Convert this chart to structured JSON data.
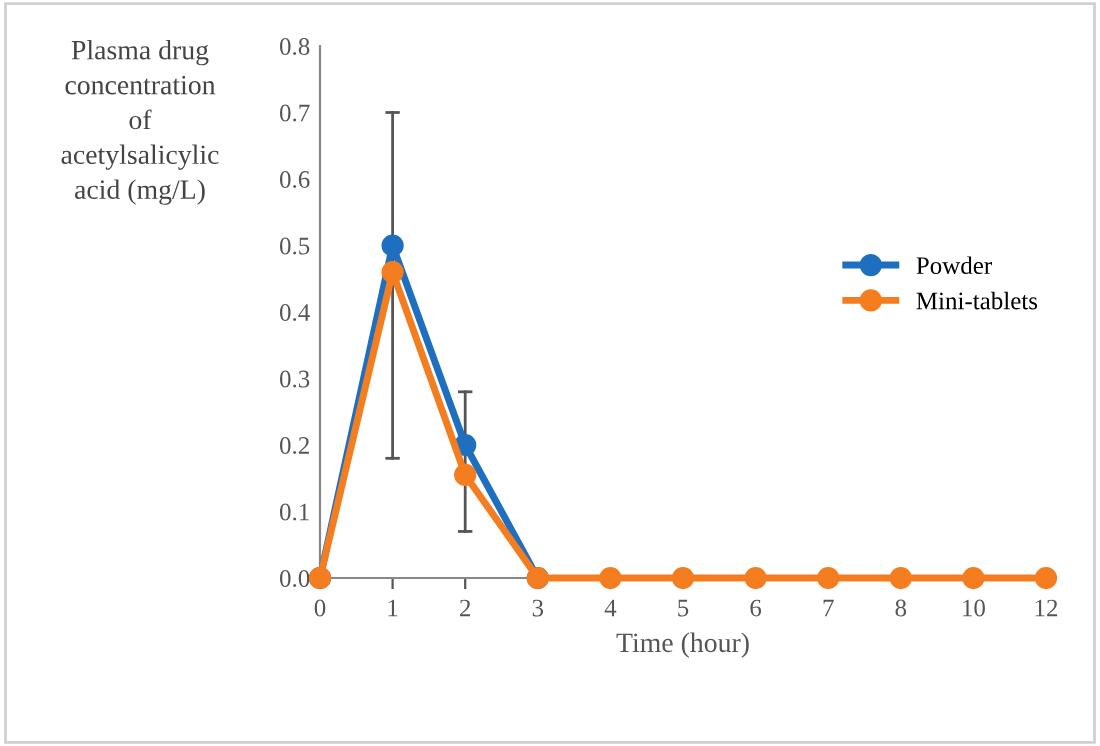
{
  "chart_data": {
    "type": "line",
    "xlabel": "Time (hour)",
    "ylabel": "Plasma drug\nconcentration\nof\nacetylsalicylic\nacid (mg/L)",
    "categories": [
      "0",
      "1",
      "2",
      "3",
      "4",
      "5",
      "6",
      "7",
      "8",
      "10",
      "12"
    ],
    "series": [
      {
        "name": "Powder",
        "color": "#1f6fc0",
        "values": [
          0,
          0.5,
          0.2,
          0,
          null,
          null,
          null,
          null,
          null,
          null,
          null
        ]
      },
      {
        "name": "Mini-tablets",
        "color": "#f47d20",
        "values": [
          0,
          0.46,
          0.155,
          0,
          0,
          0,
          0,
          0,
          0,
          0,
          0
        ],
        "errors": [
          null,
          [
            0.18,
            0.7
          ],
          [
            0.07,
            0.28
          ],
          null,
          null,
          null,
          null,
          null,
          null,
          null,
          null
        ]
      }
    ],
    "ylim": [
      0,
      0.8
    ],
    "yticks": [
      {
        "value": 0,
        "label": "0.0"
      },
      {
        "value": 0.1,
        "label": "0.1"
      },
      {
        "value": 0.2,
        "label": "0.2"
      },
      {
        "value": 0.3,
        "label": "0.3"
      },
      {
        "value": 0.4,
        "label": "0.4"
      },
      {
        "value": 0.5,
        "label": "0.5"
      },
      {
        "value": 0.6,
        "label": "0.6"
      },
      {
        "value": 0.7,
        "label": "0.7"
      },
      {
        "value": 0.8,
        "label": "0.8"
      }
    ],
    "grid": false,
    "legend": "right",
    "marker": "circle",
    "line_style": "solid"
  }
}
